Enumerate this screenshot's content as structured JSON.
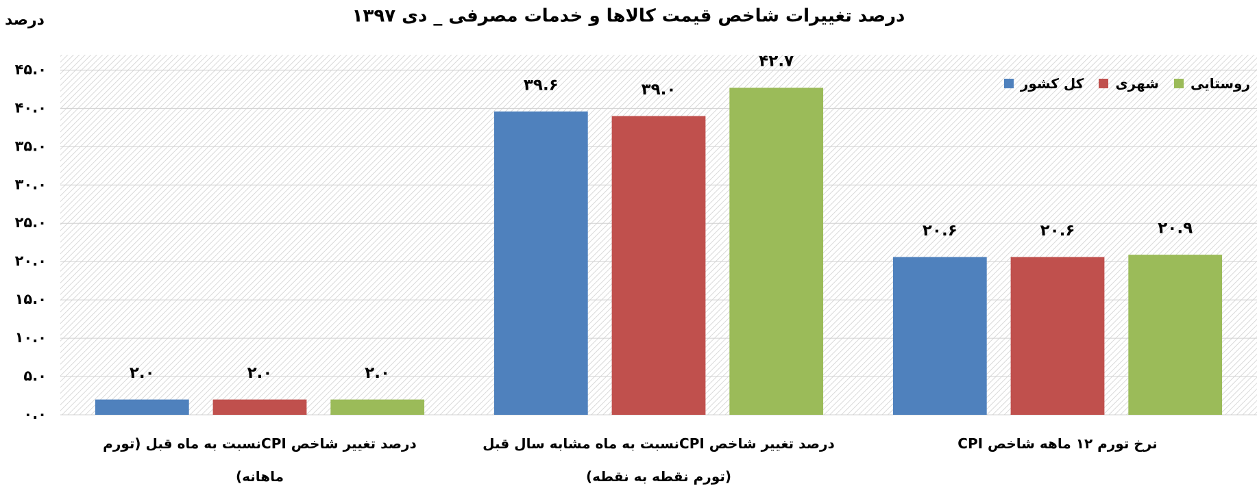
{
  "chart_data": {
    "type": "bar",
    "title": "درصد تغییرات شاخص قیمت کالاها و خدمات مصرفی _ دی ۱۳۹۷",
    "y_label": "درصد",
    "categories": [
      "نرخ تورم ۱۲ ماهه شاخص CPI",
      "درصد تغییر شاخص CPIنسبت به ماه مشابه سال قبل (تورم نقطه به نقطه)",
      "درصد تغییر شاخص CPIنسبت به ماه قبل (تورم ماهانه)"
    ],
    "series": [
      {
        "name": "کل کشور",
        "color": "#4f81bd",
        "values": [
          20.6,
          39.6,
          2.0
        ],
        "value_labels": [
          "۲۰.۶",
          "۳۹.۶",
          "۲.۰"
        ]
      },
      {
        "name": "شهری",
        "color": "#c0504d",
        "values": [
          20.6,
          39.0,
          2.0
        ],
        "value_labels": [
          "۲۰.۶",
          "۳۹.۰",
          "۲.۰"
        ]
      },
      {
        "name": "روستایی",
        "color": "#9bbb59",
        "values": [
          20.9,
          42.7,
          2.0
        ],
        "value_labels": [
          "۲۰.۹",
          "۴۲.۷",
          "۲.۰"
        ]
      }
    ],
    "ylim": [
      0,
      47
    ],
    "yticks": [
      {
        "value": 0,
        "label": "۰.۰"
      },
      {
        "value": 5,
        "label": "۵.۰"
      },
      {
        "value": 10,
        "label": "۱۰.۰"
      },
      {
        "value": 15,
        "label": "۱۵.۰"
      },
      {
        "value": 20,
        "label": "۲۰.۰"
      },
      {
        "value": 25,
        "label": "۲۵.۰"
      },
      {
        "value": 30,
        "label": "۳۰.۰"
      },
      {
        "value": 35,
        "label": "۳۵.۰"
      },
      {
        "value": 40,
        "label": "۴۰.۰"
      },
      {
        "value": 45,
        "label": "۴۵.۰"
      }
    ],
    "grid": true,
    "legend": "top-right"
  }
}
